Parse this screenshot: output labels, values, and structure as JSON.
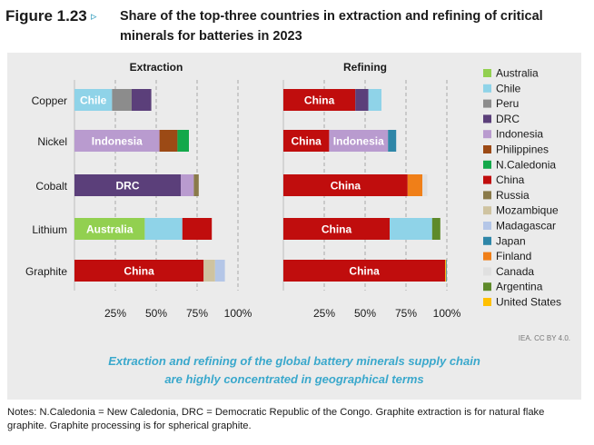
{
  "figure": {
    "label": "Figure 1.23",
    "arrow": "▹",
    "title": "Share of the top-three countries in extraction and refining of critical minerals for batteries in 2023"
  },
  "chart_data": {
    "type": "bar",
    "orientation": "horizontal",
    "stacked": true,
    "categories": [
      "Copper",
      "Nickel",
      "Cobalt",
      "Lithium",
      "Graphite"
    ],
    "panels": [
      {
        "title": "Extraction",
        "xticks": [
          "25%",
          "50%",
          "75%",
          "100%"
        ],
        "xlim": [
          0,
          100
        ],
        "bars": [
          {
            "category": "Copper",
            "segments": [
              {
                "country": "Chile",
                "value": 23,
                "label": "Chile"
              },
              {
                "country": "Peru",
                "value": 12
              },
              {
                "country": "DRC",
                "value": 12
              }
            ]
          },
          {
            "category": "Nickel",
            "segments": [
              {
                "country": "Indonesia",
                "value": 52,
                "label": "Indonesia"
              },
              {
                "country": "Philippines",
                "value": 11
              },
              {
                "country": "N.Caledonia",
                "value": 7
              }
            ]
          },
          {
            "category": "Cobalt",
            "segments": [
              {
                "country": "DRC",
                "value": 65,
                "label": "DRC"
              },
              {
                "country": "Indonesia",
                "value": 8
              },
              {
                "country": "Russia",
                "value": 3
              }
            ]
          },
          {
            "category": "Lithium",
            "segments": [
              {
                "country": "Australia",
                "value": 43,
                "label": "Australia"
              },
              {
                "country": "Chile",
                "value": 23
              },
              {
                "country": "China",
                "value": 18
              }
            ]
          },
          {
            "category": "Graphite",
            "segments": [
              {
                "country": "China",
                "value": 79,
                "label": "China"
              },
              {
                "country": "Mozambique",
                "value": 7
              },
              {
                "country": "Madagascar",
                "value": 6
              }
            ]
          }
        ]
      },
      {
        "title": "Refining",
        "xticks": [
          "25%",
          "50%",
          "75%",
          "100%"
        ],
        "xlim": [
          0,
          100
        ],
        "bars": [
          {
            "category": "Copper",
            "segments": [
              {
                "country": "China",
                "value": 44,
                "label": "China"
              },
              {
                "country": "DRC",
                "value": 8
              },
              {
                "country": "Chile",
                "value": 8
              }
            ]
          },
          {
            "category": "Nickel",
            "segments": [
              {
                "country": "China",
                "value": 28,
                "label": "China"
              },
              {
                "country": "Indonesia",
                "value": 36,
                "label": "Indonesia"
              },
              {
                "country": "Japan",
                "value": 5
              }
            ]
          },
          {
            "category": "Cobalt",
            "segments": [
              {
                "country": "China",
                "value": 76,
                "label": "China"
              },
              {
                "country": "Finland",
                "value": 9
              },
              {
                "country": "Canada",
                "value": 3
              }
            ]
          },
          {
            "category": "Lithium",
            "segments": [
              {
                "country": "China",
                "value": 65,
                "label": "China"
              },
              {
                "country": "Chile",
                "value": 26
              },
              {
                "country": "Argentina",
                "value": 5
              }
            ]
          },
          {
            "category": "Graphite",
            "segments": [
              {
                "country": "China",
                "value": 99,
                "label": "China"
              },
              {
                "country": "United States",
                "value": 0.6
              },
              {
                "country": "Japan",
                "value": 0.4
              }
            ]
          }
        ]
      }
    ],
    "legend": {
      "placement": "right",
      "entries": [
        {
          "name": "Australia",
          "color": "#92d050"
        },
        {
          "name": "Chile",
          "color": "#8fd3e8"
        },
        {
          "name": "Peru",
          "color": "#8c8c8c"
        },
        {
          "name": "DRC",
          "color": "#5b3f7a"
        },
        {
          "name": "Indonesia",
          "color": "#b99bcf"
        },
        {
          "name": "Philippines",
          "color": "#9c4a15"
        },
        {
          "name": "N.Caledonia",
          "color": "#13a84a"
        },
        {
          "name": "China",
          "color": "#c00d0d"
        },
        {
          "name": "Russia",
          "color": "#8a7a4a"
        },
        {
          "name": "Mozambique",
          "color": "#cfc3a0"
        },
        {
          "name": "Madagascar",
          "color": "#b4c6e7"
        },
        {
          "name": "Japan",
          "color": "#2e86a8"
        },
        {
          "name": "Finland",
          "color": "#f07f18"
        },
        {
          "name": "Canada",
          "color": "#e0e0e0"
        },
        {
          "name": "Argentina",
          "color": "#5e8a2a"
        },
        {
          "name": "United States",
          "color": "#ffc000"
        }
      ]
    }
  },
  "credit": "IEA. CC BY 4.0.",
  "subtitle_lines": [
    "Extraction and refining of the global battery minerals supply chain",
    "are highly concentrated in geographical terms"
  ],
  "notes": "Notes: N.Caledonia = New Caledonia, DRC = Democratic Republic of the Congo. Graphite extraction is for natural flake graphite. Graphite processing is for spherical graphite."
}
